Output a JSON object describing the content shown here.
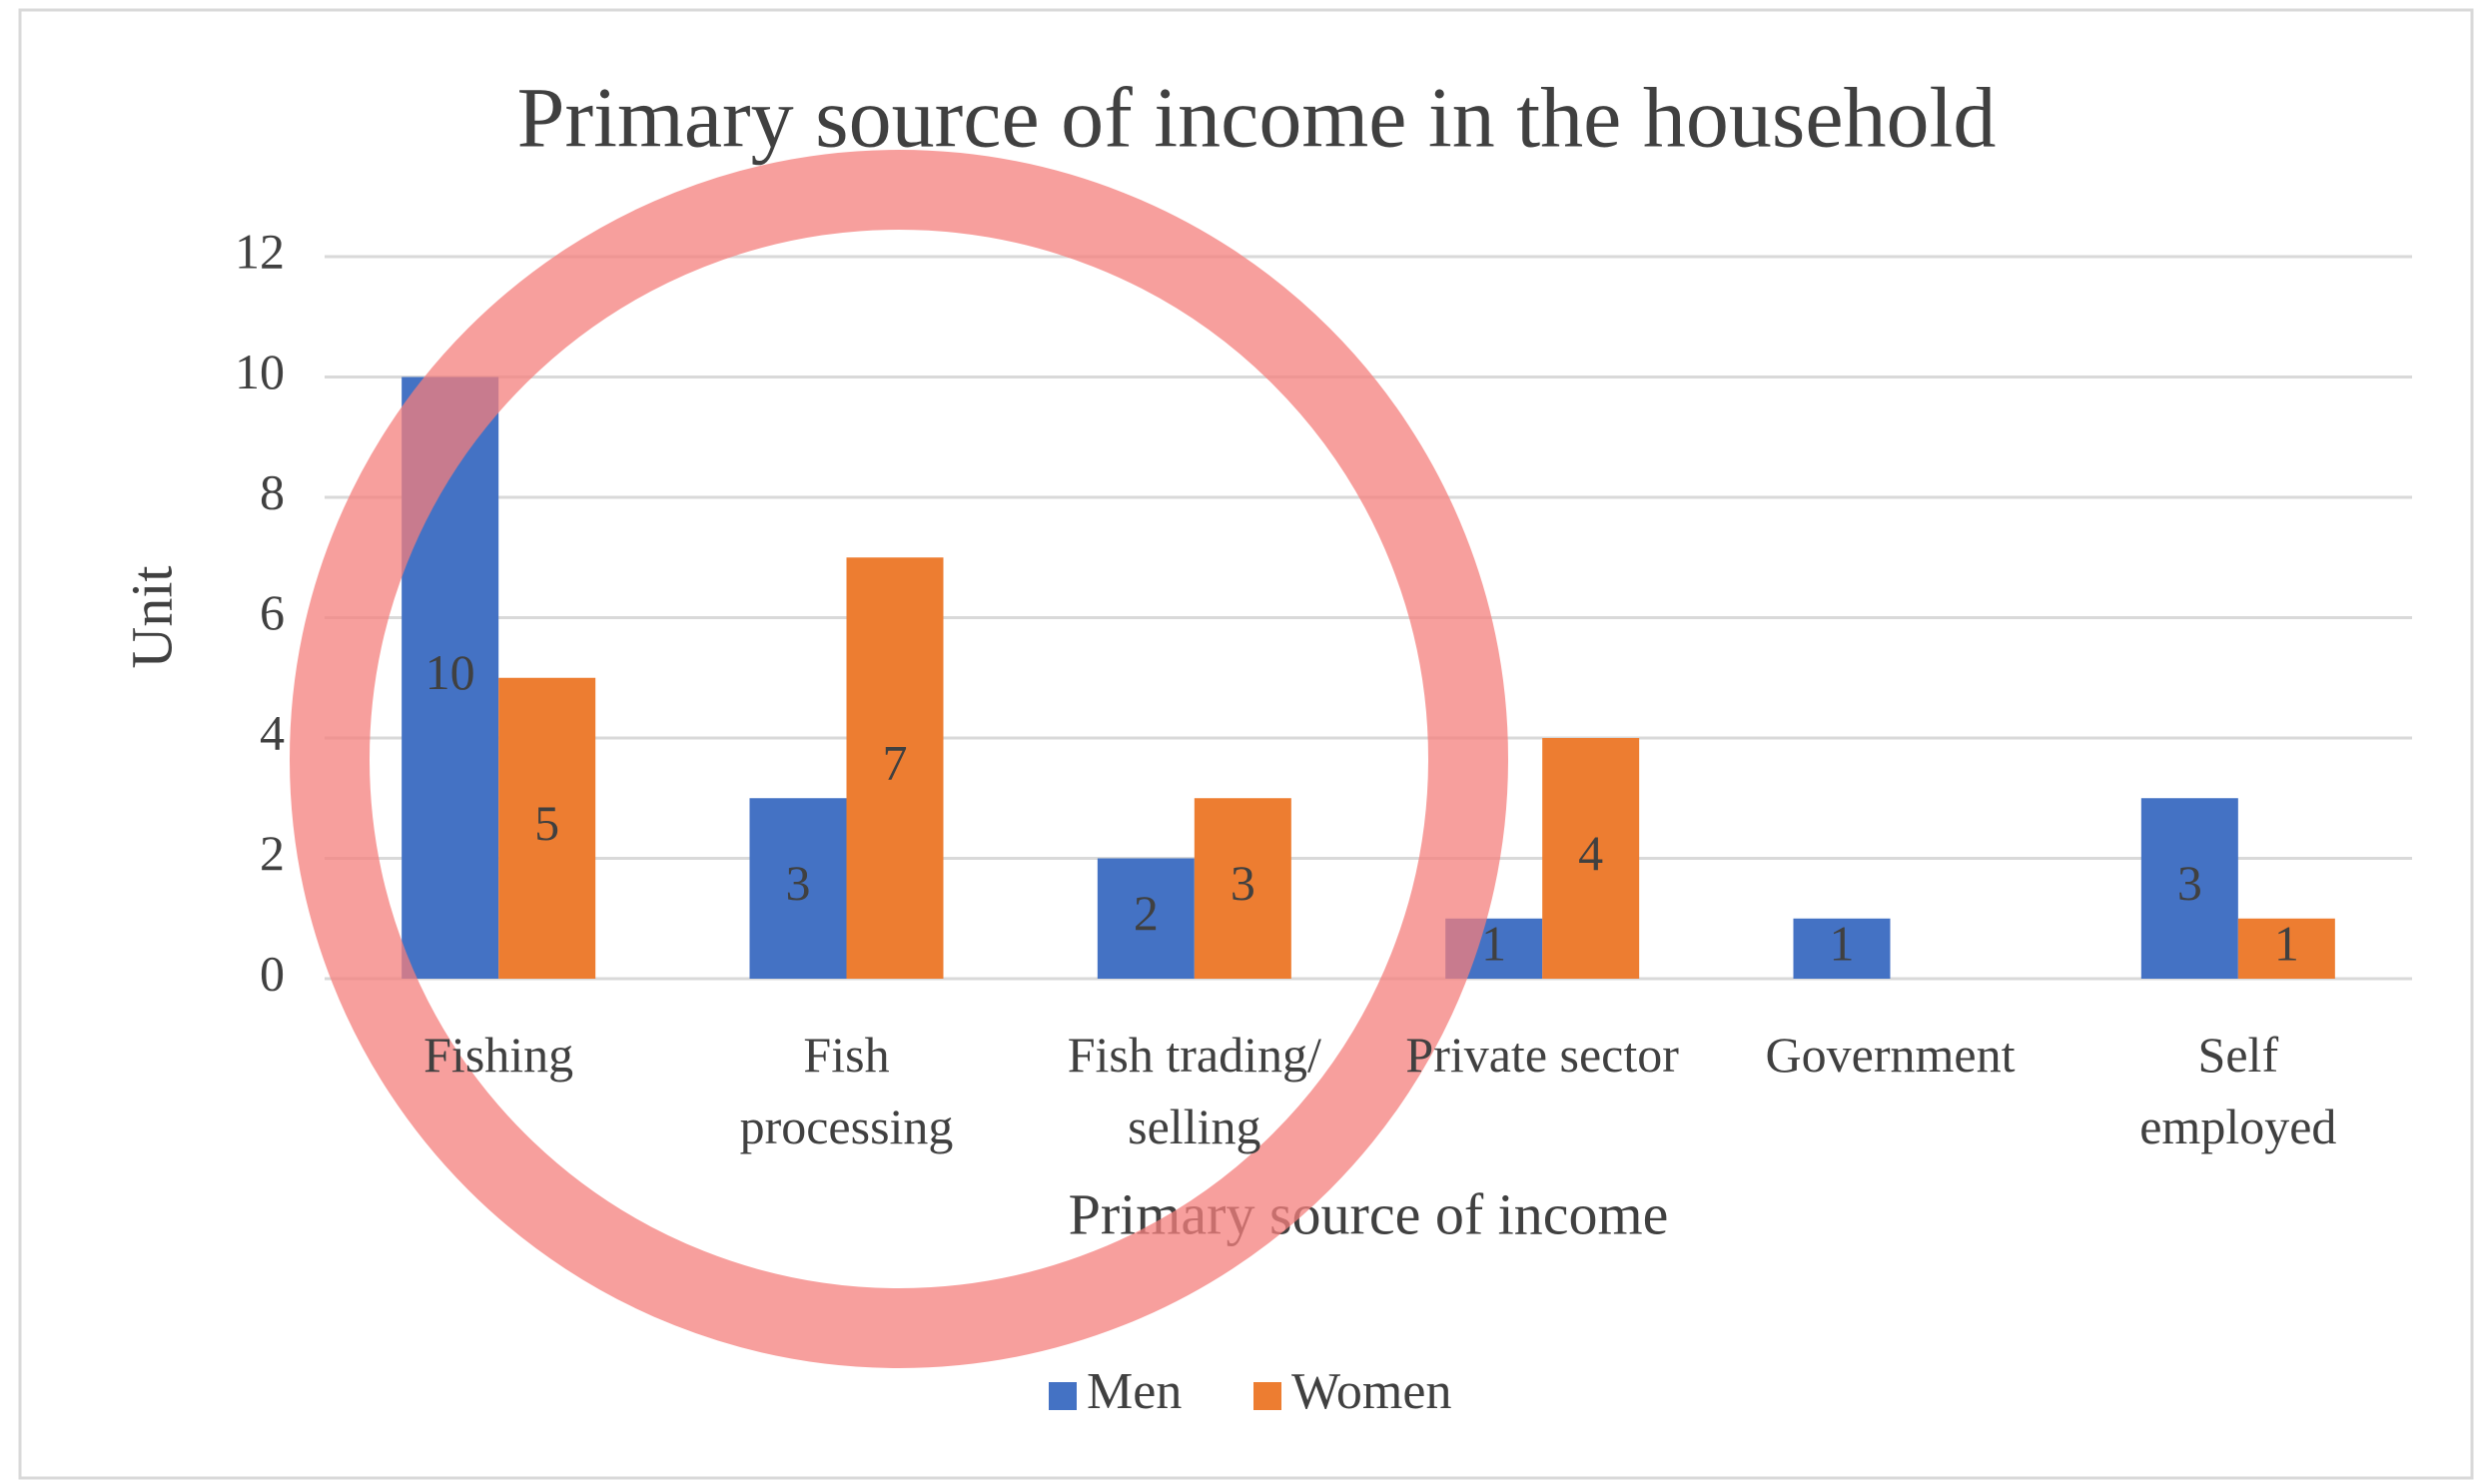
{
  "chart_data": {
    "type": "bar",
    "title": "Primary source of income in the household",
    "x_label": "Primary source of income",
    "y_label": "Unit",
    "categories": [
      "Fishing",
      "Fish\nprocessing",
      "Fish trading/\nselling",
      "Private sector",
      "Government",
      "Self\nemployed"
    ],
    "series": [
      {
        "name": "Men",
        "color": "#4472c4",
        "values": [
          10,
          3,
          2,
          1,
          1,
          3
        ]
      },
      {
        "name": "Women",
        "color": "#ed7d31",
        "values": [
          5,
          7,
          3,
          4,
          null,
          1
        ]
      }
    ],
    "ylim": [
      0,
      12
    ],
    "yticks": [
      0,
      2,
      4,
      6,
      8,
      10,
      12
    ],
    "grid": true,
    "legend": "bottom"
  }
}
